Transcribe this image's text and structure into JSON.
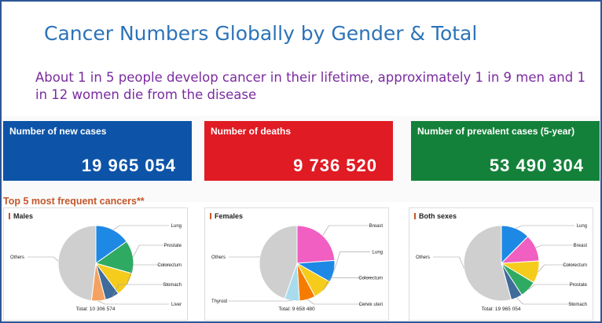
{
  "title": "Cancer Numbers Globally by Gender & Total",
  "subtitle": "About 1 in 5 people develop cancer in their lifetime, approximately 1 in 9 men and 1 in 12 women die from the disease",
  "stats": [
    {
      "label": "Number of new cases",
      "value": "19 965 054",
      "color": "#0d54a8"
    },
    {
      "label": "Number of deaths",
      "value": "9 736 520",
      "color": "#e01b24"
    },
    {
      "label": "Number of prevalent cases (5-year)",
      "value": "53 490 304",
      "color": "#14813a"
    }
  ],
  "section_title": "Top 5 most frequent cancers**",
  "chart_data": [
    {
      "type": "pie",
      "title": "Males",
      "total": "Total: 10 306 574",
      "slices": [
        {
          "label": "Lung",
          "value": 15.2,
          "color": "#1e88e5"
        },
        {
          "label": "Prostate",
          "value": 14.2,
          "color": "#2eaa62"
        },
        {
          "label": "Colorectum",
          "value": 10.4,
          "color": "#f5cc1c"
        },
        {
          "label": "Stomach",
          "value": 6.1,
          "color": "#3f6c9a"
        },
        {
          "label": "Liver",
          "value": 6.0,
          "color": "#f4a261"
        },
        {
          "label": "Others",
          "value": 48.1,
          "color": "#cfcfcf"
        }
      ]
    },
    {
      "type": "pie",
      "title": "Females",
      "total": "Total: 9 658 480",
      "slices": [
        {
          "label": "Breast",
          "value": 23.8,
          "color": "#f05fc1"
        },
        {
          "label": "Lung",
          "value": 9.4,
          "color": "#1e88e5"
        },
        {
          "label": "Colorectum",
          "value": 8.9,
          "color": "#f5cc1c"
        },
        {
          "label": "Cervix uteri",
          "value": 6.9,
          "color": "#f57c00"
        },
        {
          "label": "Thyroid",
          "value": 6.4,
          "color": "#a8dcec"
        },
        {
          "label": "Others",
          "value": 44.6,
          "color": "#cfcfcf"
        }
      ]
    },
    {
      "type": "pie",
      "title": "Both sexes",
      "total": "Total: 19 965 054",
      "slices": [
        {
          "label": "Lung",
          "value": 12.4,
          "color": "#1e88e5"
        },
        {
          "label": "Breast",
          "value": 11.6,
          "color": "#f05fc1"
        },
        {
          "label": "Colorectum",
          "value": 9.6,
          "color": "#f5cc1c"
        },
        {
          "label": "Prostate",
          "value": 7.3,
          "color": "#2eaa62"
        },
        {
          "label": "Stomach",
          "value": 4.9,
          "color": "#3f6c9a"
        },
        {
          "label": "Others",
          "value": 54.2,
          "color": "#cfcfcf"
        }
      ]
    }
  ]
}
